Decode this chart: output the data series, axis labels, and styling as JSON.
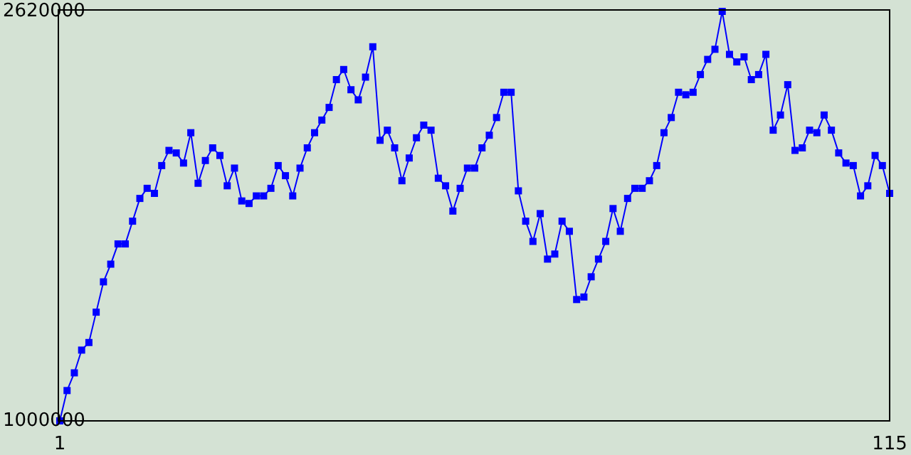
{
  "chart_data": {
    "type": "line",
    "x": [
      1,
      2,
      3,
      4,
      5,
      6,
      7,
      8,
      9,
      10,
      11,
      12,
      13,
      14,
      15,
      16,
      17,
      18,
      19,
      20,
      21,
      22,
      23,
      24,
      25,
      26,
      27,
      28,
      29,
      30,
      31,
      32,
      33,
      34,
      35,
      36,
      37,
      38,
      39,
      40,
      41,
      42,
      43,
      44,
      45,
      46,
      47,
      48,
      49,
      50,
      51,
      52,
      53,
      54,
      55,
      56,
      57,
      58,
      59,
      60,
      61,
      62,
      63,
      64,
      65,
      66,
      67,
      68,
      69,
      70,
      71,
      72,
      73,
      74,
      75,
      76,
      77,
      78,
      79,
      80,
      81,
      82,
      83,
      84,
      85,
      86,
      87,
      88,
      89,
      90,
      91,
      92,
      93,
      94,
      95,
      96,
      97,
      98,
      99,
      100,
      101,
      102,
      103,
      104,
      105,
      106,
      107,
      108,
      109,
      110,
      111,
      112,
      113,
      114,
      115
    ],
    "series": [
      {
        "color": "#0000ff",
        "values": [
          1000000,
          1120000,
          1190000,
          1280000,
          1310000,
          1430000,
          1550000,
          1620000,
          1700000,
          1700000,
          1790000,
          1880000,
          1920000,
          1900000,
          2010000,
          2070000,
          2060000,
          2020000,
          2140000,
          1940000,
          2030000,
          2080000,
          2050000,
          1930000,
          2000000,
          1870000,
          1860000,
          1890000,
          1890000,
          1920000,
          2010000,
          1970000,
          1890000,
          2000000,
          2080000,
          2140000,
          2190000,
          2240000,
          2350000,
          2390000,
          2310000,
          2270000,
          2360000,
          2480000,
          2110000,
          2150000,
          2080000,
          1950000,
          2040000,
          2120000,
          2170000,
          2150000,
          1960000,
          1930000,
          1830000,
          1920000,
          2000000,
          2000000,
          2080000,
          2130000,
          2200000,
          2300000,
          2300000,
          1910000,
          1790000,
          1710000,
          1820000,
          1640000,
          1660000,
          1790000,
          1750000,
          1480000,
          1490000,
          1570000,
          1640000,
          1710000,
          1840000,
          1750000,
          1880000,
          1920000,
          1920000,
          1950000,
          2010000,
          2140000,
          2200000,
          2300000,
          2290000,
          2300000,
          2370000,
          2430000,
          2470000,
          2620000,
          2450000,
          2420000,
          2440000,
          2350000,
          2370000,
          2450000,
          2150000,
          2210000,
          2330000,
          2070000,
          2080000,
          2150000,
          2140000,
          2210000,
          2150000,
          2060000,
          2020000,
          2010000,
          1890000,
          1930000,
          2050000,
          2010000,
          1900000
        ]
      }
    ],
    "xlim": [
      1,
      115
    ],
    "xticks": [
      1,
      115
    ],
    "ylim": [
      1000000,
      2620000
    ],
    "yticks": [
      1000000,
      2620000
    ],
    "marker": "square",
    "line_style": "solid",
    "grid": false
  }
}
